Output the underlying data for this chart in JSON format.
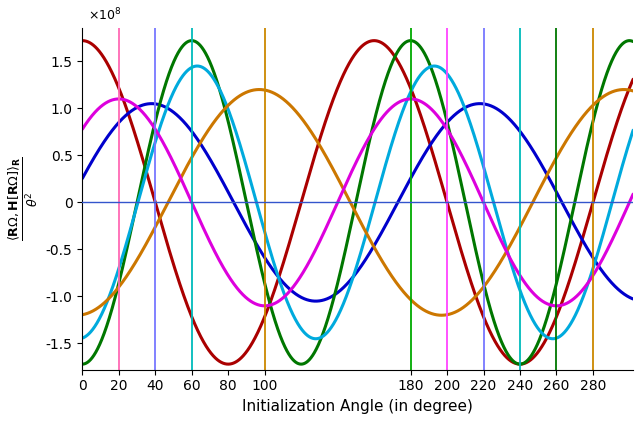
{
  "xlabel": "Initialization Angle (in degree)",
  "xlim": [
    0,
    302
  ],
  "ylim": [
    -178000000.0,
    185000000.0
  ],
  "xticks": [
    0,
    20,
    40,
    60,
    80,
    100,
    180,
    200,
    220,
    240,
    260,
    280
  ],
  "ytick_vals": [
    -150000000.0,
    -100000000.0,
    -50000000.0,
    0,
    50000000.0,
    100000000.0,
    150000000.0
  ],
  "curves": [
    {
      "amp": 172000000.0,
      "period": 160,
      "peak": 0,
      "color": "#aa0000"
    },
    {
      "amp": 105000000.0,
      "period": 180,
      "peak": 38,
      "color": "#0000cc"
    },
    {
      "amp": 172000000.0,
      "period": 120,
      "peak": 60,
      "color": "#007700"
    },
    {
      "amp": 145000000.0,
      "period": 130,
      "peak": 63,
      "color": "#00aadd"
    },
    {
      "amp": 120000000.0,
      "period": 200,
      "peak": 97,
      "color": "#cc7700"
    },
    {
      "amp": 110000000.0,
      "period": 160,
      "peak": 20,
      "color": "#dd00dd"
    }
  ],
  "vlines": [
    {
      "x": 20,
      "color": "#ff69b4"
    },
    {
      "x": 40,
      "color": "#7777ff"
    },
    {
      "x": 60,
      "color": "#00bbbb"
    },
    {
      "x": 100,
      "color": "#cc8800"
    },
    {
      "x": 180,
      "color": "#00aa00"
    },
    {
      "x": 200,
      "color": "#ff44ff"
    },
    {
      "x": 220,
      "color": "#7777ff"
    },
    {
      "x": 240,
      "color": "#00bbbb"
    },
    {
      "x": 260,
      "color": "#007700"
    },
    {
      "x": 280,
      "color": "#cc8800"
    }
  ],
  "hline_color": "#3355cc",
  "lw": 2.2,
  "vline_lw": 1.3,
  "background": "#ffffff"
}
